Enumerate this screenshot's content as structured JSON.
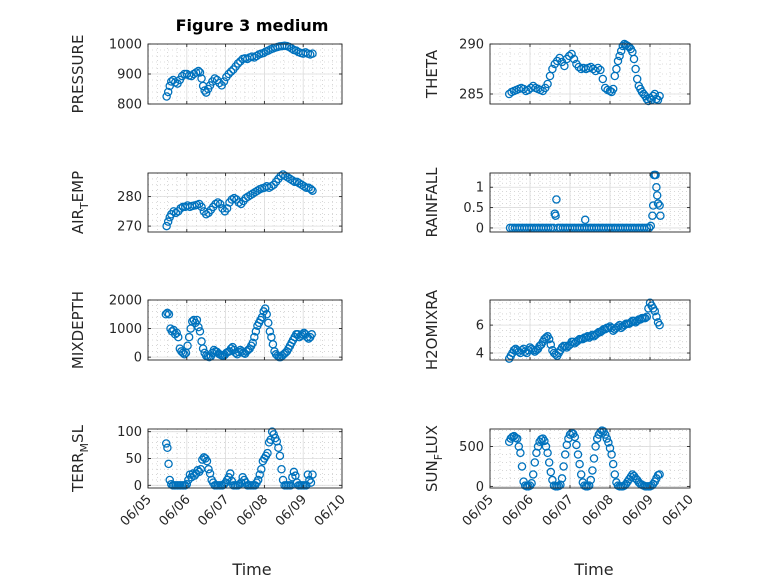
{
  "figure": {
    "title": "Figure 3 medium",
    "xlabel": "Time",
    "date_ticks": [
      "06/05",
      "06/06",
      "06/07",
      "06/08",
      "06/09",
      "06/10"
    ],
    "marker_color": "#0072BD"
  },
  "chart_data": [
    {
      "type": "scatter",
      "ylabel": "PRESSURE",
      "ylim": [
        800,
        1000
      ],
      "yticks": [
        800,
        900,
        1000
      ],
      "grid": true,
      "minor_grid": true,
      "x": [
        5.48,
        5.52,
        5.56,
        5.6,
        5.65,
        5.7,
        5.76,
        5.82,
        5.88,
        5.94,
        6.0,
        6.06,
        6.12,
        6.18,
        6.24,
        6.3,
        6.34,
        6.38,
        6.42,
        6.46,
        6.5,
        6.55,
        6.6,
        6.66,
        6.72,
        6.78,
        6.84,
        6.9,
        6.96,
        7.02,
        7.08,
        7.14,
        7.2,
        7.26,
        7.32,
        7.38,
        7.44,
        7.5,
        7.56,
        7.62,
        7.68,
        7.74,
        7.8,
        7.86,
        7.92,
        7.98,
        8.04,
        8.1,
        8.16,
        8.22,
        8.28,
        8.34,
        8.4,
        8.46,
        8.52,
        8.58,
        8.64,
        8.7,
        8.76,
        8.82,
        8.88,
        8.94,
        9.0,
        9.06,
        9.12,
        9.18,
        9.24
      ],
      "y": [
        825,
        840,
        860,
        875,
        880,
        872,
        868,
        880,
        893,
        900,
        900,
        895,
        893,
        900,
        905,
        910,
        905,
        885,
        860,
        845,
        838,
        850,
        862,
        875,
        885,
        880,
        870,
        862,
        875,
        890,
        900,
        908,
        915,
        925,
        935,
        942,
        950,
        952,
        950,
        955,
        958,
        955,
        960,
        965,
        968,
        970,
        975,
        978,
        982,
        985,
        988,
        990,
        992,
        993,
        994,
        993,
        990,
        985,
        980,
        978,
        973,
        970,
        968,
        972,
        968,
        965,
        968
      ]
    },
    {
      "type": "scatter",
      "ylabel": "THETA",
      "ylim": [
        284,
        290
      ],
      "yticks": [
        285,
        290
      ],
      "grid": true,
      "minor_grid": true,
      "x": [
        5.48,
        5.54,
        5.6,
        5.66,
        5.72,
        5.78,
        5.84,
        5.9,
        5.96,
        6.02,
        6.08,
        6.14,
        6.2,
        6.26,
        6.32,
        6.38,
        6.44,
        6.5,
        6.56,
        6.62,
        6.68,
        6.74,
        6.8,
        6.86,
        6.92,
        6.98,
        7.04,
        7.1,
        7.16,
        7.22,
        7.28,
        7.34,
        7.4,
        7.46,
        7.52,
        7.58,
        7.64,
        7.7,
        7.76,
        7.82,
        7.88,
        7.94,
        8.0,
        8.04,
        8.08,
        8.12,
        8.16,
        8.2,
        8.24,
        8.28,
        8.32,
        8.36,
        8.4,
        8.44,
        8.48,
        8.52,
        8.56,
        8.6,
        8.64,
        8.68,
        8.72,
        8.76,
        8.8,
        8.84,
        8.88,
        8.92,
        8.96,
        9.0,
        9.04,
        9.08,
        9.12,
        9.16,
        9.2,
        9.24
      ],
      "y": [
        285.0,
        285.2,
        285.3,
        285.4,
        285.5,
        285.6,
        285.5,
        285.3,
        285.4,
        285.6,
        285.8,
        285.6,
        285.5,
        285.4,
        285.3,
        285.6,
        286.0,
        286.8,
        287.5,
        288.0,
        288.3,
        288.6,
        288.2,
        287.8,
        288.5,
        288.8,
        289.0,
        288.5,
        288.0,
        287.7,
        287.5,
        287.6,
        287.5,
        287.6,
        287.7,
        287.5,
        287.3,
        287.6,
        287.4,
        286.5,
        285.6,
        285.4,
        285.3,
        285.2,
        285.5,
        286.8,
        287.5,
        288.3,
        288.8,
        289.3,
        289.8,
        290.0,
        289.9,
        289.8,
        289.7,
        289.5,
        289.2,
        288.5,
        287.5,
        286.5,
        285.8,
        285.5,
        285.2,
        285.0,
        284.8,
        284.5,
        284.3,
        284.6,
        284.4,
        284.8,
        285.0,
        284.5,
        284.4,
        284.8
      ]
    },
    {
      "type": "scatter",
      "ylabel": "AIR_TEMP",
      "ylim": [
        268,
        288
      ],
      "yticks": [
        270,
        280
      ],
      "grid": true,
      "minor_grid": true,
      "x": [
        5.48,
        5.52,
        5.56,
        5.6,
        5.66,
        5.72,
        5.78,
        5.84,
        5.9,
        5.96,
        6.02,
        6.08,
        6.14,
        6.2,
        6.26,
        6.32,
        6.38,
        6.44,
        6.5,
        6.56,
        6.62,
        6.68,
        6.74,
        6.8,
        6.86,
        6.92,
        6.98,
        7.04,
        7.1,
        7.16,
        7.22,
        7.28,
        7.34,
        7.4,
        7.46,
        7.52,
        7.58,
        7.64,
        7.7,
        7.76,
        7.82,
        7.88,
        7.94,
        8.0,
        8.06,
        8.12,
        8.18,
        8.24,
        8.3,
        8.36,
        8.42,
        8.48,
        8.54,
        8.6,
        8.66,
        8.72,
        8.78,
        8.84,
        8.9,
        8.96,
        9.02,
        9.08,
        9.14,
        9.2,
        9.24
      ],
      "y": [
        270,
        271.5,
        273,
        274,
        275,
        274.5,
        275,
        276,
        276.5,
        276.5,
        277,
        276.5,
        276.8,
        277,
        277.2,
        277.5,
        276.5,
        275,
        274,
        274.5,
        275.5,
        276.5,
        277.5,
        278,
        277.5,
        276,
        275,
        276,
        278,
        279,
        279.5,
        279,
        278,
        277.5,
        278.5,
        279.5,
        280,
        280.5,
        281,
        281.5,
        282,
        282.5,
        282.8,
        283,
        283.5,
        283,
        283.5,
        284,
        285,
        286,
        287,
        287.5,
        287,
        286.5,
        286,
        285.5,
        285,
        285,
        284.5,
        284,
        283.5,
        283,
        283,
        282.5,
        282
      ]
    },
    {
      "type": "scatter",
      "ylabel": "RAINFALL",
      "ylim": [
        -0.1,
        1.35
      ],
      "yticks": [
        0,
        0.5,
        1
      ],
      "grid": true,
      "minor_grid": true,
      "x": [
        5.5,
        5.56,
        5.62,
        5.68,
        5.74,
        5.8,
        5.86,
        5.92,
        5.98,
        6.04,
        6.1,
        6.16,
        6.22,
        6.28,
        6.34,
        6.4,
        6.46,
        6.52,
        6.58,
        6.62,
        6.64,
        6.66,
        6.7,
        6.76,
        6.82,
        6.88,
        6.94,
        7.0,
        7.06,
        7.12,
        7.18,
        7.24,
        7.3,
        7.36,
        7.38,
        7.42,
        7.48,
        7.54,
        7.6,
        7.66,
        7.72,
        7.78,
        7.84,
        7.9,
        7.96,
        8.02,
        8.08,
        8.14,
        8.2,
        8.26,
        8.32,
        8.38,
        8.44,
        8.5,
        8.56,
        8.62,
        8.68,
        8.74,
        8.8,
        8.86,
        8.92,
        8.98,
        9.02,
        9.06,
        9.08,
        9.1,
        9.12,
        9.14,
        9.16,
        9.18,
        9.2,
        9.24,
        9.26
      ],
      "y": [
        0,
        0,
        0,
        0,
        0,
        0,
        0,
        0,
        0,
        0,
        0,
        0,
        0,
        0,
        0,
        0,
        0,
        0,
        0,
        0.35,
        0.3,
        0.7,
        0,
        0,
        0,
        0,
        0,
        0,
        0,
        0,
        0,
        0,
        0,
        0,
        0.2,
        0,
        0,
        0,
        0,
        0,
        0,
        0,
        0,
        0,
        0,
        0,
        0,
        0,
        0,
        0,
        0,
        0,
        0,
        0,
        0,
        0,
        0,
        0,
        0,
        0,
        0,
        0,
        0.05,
        0.3,
        0.55,
        1.3,
        1.3,
        1.3,
        1.0,
        0.8,
        0.6,
        0.55,
        0.3
      ]
    },
    {
      "type": "scatter",
      "ylabel": "MIXDEPTH",
      "ylim": [
        -100,
        2000
      ],
      "yticks": [
        0,
        1000,
        2000
      ],
      "grid": true,
      "minor_grid": true,
      "x": [
        5.46,
        5.5,
        5.54,
        5.58,
        5.62,
        5.66,
        5.7,
        5.74,
        5.78,
        5.82,
        5.86,
        5.9,
        5.94,
        5.98,
        6.02,
        6.06,
        6.1,
        6.14,
        6.18,
        6.22,
        6.26,
        6.3,
        6.34,
        6.38,
        6.42,
        6.46,
        6.5,
        6.54,
        6.58,
        6.62,
        6.66,
        6.7,
        6.74,
        6.78,
        6.82,
        6.86,
        6.9,
        6.94,
        6.98,
        7.02,
        7.06,
        7.1,
        7.14,
        7.18,
        7.22,
        7.26,
        7.3,
        7.34,
        7.38,
        7.42,
        7.46,
        7.5,
        7.54,
        7.58,
        7.62,
        7.66,
        7.7,
        7.74,
        7.78,
        7.82,
        7.86,
        7.9,
        7.94,
        7.98,
        8.02,
        8.06,
        8.1,
        8.14,
        8.18,
        8.22,
        8.26,
        8.3,
        8.34,
        8.38,
        8.42,
        8.46,
        8.5,
        8.54,
        8.58,
        8.62,
        8.66,
        8.7,
        8.74,
        8.78,
        8.82,
        8.86,
        8.9,
        8.94,
        8.98,
        9.02,
        9.06,
        9.1,
        9.14,
        9.18,
        9.22
      ],
      "y": [
        1500,
        1550,
        1500,
        1000,
        900,
        950,
        800,
        850,
        700,
        300,
        200,
        150,
        100,
        150,
        400,
        700,
        1000,
        1250,
        1300,
        1200,
        1300,
        1050,
        900,
        550,
        300,
        150,
        50,
        20,
        0,
        30,
        150,
        250,
        200,
        180,
        120,
        90,
        60,
        40,
        80,
        150,
        180,
        200,
        300,
        350,
        250,
        150,
        100,
        180,
        250,
        200,
        150,
        120,
        200,
        250,
        300,
        400,
        500,
        700,
        900,
        1100,
        1200,
        1300,
        1400,
        1600,
        1700,
        1500,
        1200,
        900,
        700,
        450,
        200,
        100,
        50,
        0,
        0,
        50,
        100,
        150,
        200,
        300,
        400,
        500,
        600,
        700,
        800,
        800,
        700,
        750,
        800,
        850,
        800,
        700,
        650,
        700,
        800
      ]
    },
    {
      "type": "scatter",
      "ylabel": "H2OMIXRA",
      "ylim": [
        3.5,
        7.8
      ],
      "yticks": [
        4,
        6
      ],
      "grid": true,
      "minor_grid": true,
      "x": [
        5.48,
        5.52,
        5.56,
        5.6,
        5.64,
        5.68,
        5.72,
        5.76,
        5.8,
        5.84,
        5.88,
        5.92,
        5.96,
        6.0,
        6.04,
        6.08,
        6.12,
        6.16,
        6.2,
        6.24,
        6.28,
        6.32,
        6.36,
        6.4,
        6.44,
        6.48,
        6.52,
        6.56,
        6.6,
        6.64,
        6.68,
        6.72,
        6.76,
        6.8,
        6.84,
        6.88,
        6.92,
        6.96,
        7.0,
        7.04,
        7.08,
        7.12,
        7.16,
        7.2,
        7.24,
        7.28,
        7.32,
        7.36,
        7.4,
        7.44,
        7.48,
        7.52,
        7.56,
        7.6,
        7.64,
        7.68,
        7.72,
        7.76,
        7.8,
        7.84,
        7.88,
        7.92,
        7.96,
        8.0,
        8.04,
        8.08,
        8.12,
        8.16,
        8.2,
        8.24,
        8.28,
        8.32,
        8.36,
        8.4,
        8.44,
        8.48,
        8.52,
        8.56,
        8.6,
        8.64,
        8.68,
        8.72,
        8.76,
        8.8,
        8.84,
        8.88,
        8.92,
        8.96,
        9.0,
        9.04,
        9.08,
        9.12,
        9.16,
        9.2,
        9.24
      ],
      "y": [
        3.6,
        3.8,
        4.0,
        4.2,
        4.3,
        4.2,
        4.1,
        4.0,
        4.2,
        4.3,
        4.1,
        4.0,
        4.2,
        4.4,
        4.3,
        4.2,
        4.1,
        4.2,
        4.3,
        4.5,
        4.6,
        4.8,
        5.0,
        5.1,
        5.2,
        5.0,
        4.6,
        4.2,
        4.0,
        3.9,
        3.8,
        4.0,
        4.2,
        4.4,
        4.5,
        4.5,
        4.4,
        4.5,
        4.6,
        4.8,
        4.8,
        4.7,
        4.8,
        4.9,
        5.0,
        5.0,
        5.0,
        5.1,
        5.1,
        5.2,
        5.1,
        5.2,
        5.3,
        5.2,
        5.3,
        5.4,
        5.5,
        5.5,
        5.6,
        5.7,
        5.7,
        5.8,
        5.8,
        5.9,
        5.8,
        5.6,
        5.7,
        5.8,
        5.9,
        6.0,
        5.8,
        5.9,
        6.0,
        6.1,
        6.1,
        6.1,
        6.2,
        6.3,
        6.3,
        6.2,
        6.3,
        6.4,
        6.4,
        6.5,
        6.5,
        6.5,
        6.6,
        7.2,
        7.6,
        7.4,
        7.2,
        7.0,
        6.6,
        6.2,
        6.0
      ]
    },
    {
      "type": "scatter",
      "ylabel": "TERR_MSL",
      "ylim": [
        -5,
        105
      ],
      "yticks": [
        0,
        50,
        100
      ],
      "grid": true,
      "minor_grid": true,
      "x": [
        5.47,
        5.5,
        5.53,
        5.56,
        5.6,
        5.64,
        5.68,
        5.72,
        5.76,
        5.8,
        5.84,
        5.88,
        5.92,
        5.96,
        6.0,
        6.04,
        6.08,
        6.12,
        6.16,
        6.2,
        6.24,
        6.28,
        6.32,
        6.36,
        6.4,
        6.44,
        6.48,
        6.52,
        6.56,
        6.6,
        6.64,
        6.68,
        6.72,
        6.76,
        6.8,
        6.84,
        6.88,
        6.92,
        6.96,
        7.0,
        7.04,
        7.08,
        7.12,
        7.16,
        7.2,
        7.24,
        7.28,
        7.32,
        7.36,
        7.4,
        7.44,
        7.48,
        7.52,
        7.56,
        7.6,
        7.64,
        7.68,
        7.72,
        7.76,
        7.8,
        7.84,
        7.88,
        7.92,
        7.96,
        8.0,
        8.04,
        8.08,
        8.12,
        8.16,
        8.2,
        8.24,
        8.28,
        8.32,
        8.36,
        8.4,
        8.44,
        8.48,
        8.52,
        8.56,
        8.6,
        8.64,
        8.68,
        8.72,
        8.76,
        8.8,
        8.84,
        8.88,
        8.92,
        8.96,
        9.0,
        9.04,
        9.08,
        9.12,
        9.16,
        9.2,
        9.24
      ],
      "y": [
        78,
        70,
        40,
        10,
        2,
        0,
        0,
        0,
        0,
        0,
        0,
        0,
        0,
        0,
        2,
        10,
        20,
        15,
        22,
        18,
        22,
        28,
        25,
        30,
        48,
        52,
        50,
        45,
        30,
        22,
        10,
        5,
        0,
        0,
        0,
        0,
        0,
        0,
        2,
        5,
        10,
        15,
        22,
        8,
        0,
        0,
        0,
        0,
        2,
        5,
        15,
        10,
        5,
        0,
        0,
        0,
        0,
        0,
        0,
        5,
        10,
        20,
        30,
        45,
        50,
        55,
        60,
        80,
        85,
        100,
        95,
        88,
        82,
        70,
        55,
        30,
        10,
        0,
        0,
        0,
        0,
        0,
        15,
        25,
        18,
        5,
        0,
        0,
        0,
        0,
        0,
        0,
        20,
        10,
        5,
        20
      ]
    },
    {
      "type": "scatter",
      "ylabel": "SUN_FLUX",
      "ylim": [
        -20,
        720
      ],
      "yticks": [
        0,
        500
      ],
      "grid": true,
      "minor_grid": true,
      "x": [
        5.48,
        5.52,
        5.56,
        5.6,
        5.64,
        5.68,
        5.72,
        5.76,
        5.8,
        5.84,
        5.88,
        5.92,
        5.96,
        6.0,
        6.04,
        6.08,
        6.12,
        6.16,
        6.2,
        6.24,
        6.28,
        6.32,
        6.36,
        6.4,
        6.44,
        6.48,
        6.52,
        6.56,
        6.6,
        6.64,
        6.68,
        6.72,
        6.76,
        6.8,
        6.84,
        6.88,
        6.92,
        6.96,
        7.0,
        7.04,
        7.08,
        7.12,
        7.16,
        7.2,
        7.24,
        7.28,
        7.32,
        7.36,
        7.4,
        7.44,
        7.48,
        7.52,
        7.56,
        7.6,
        7.64,
        7.68,
        7.72,
        7.76,
        7.8,
        7.84,
        7.88,
        7.92,
        7.96,
        8.0,
        8.04,
        8.08,
        8.12,
        8.16,
        8.2,
        8.24,
        8.28,
        8.32,
        8.36,
        8.4,
        8.44,
        8.48,
        8.52,
        8.56,
        8.6,
        8.64,
        8.68,
        8.72,
        8.76,
        8.8,
        8.84,
        8.88,
        8.92,
        8.96,
        9.0,
        9.04,
        9.08,
        9.12,
        9.16,
        9.2,
        9.24
      ],
      "y": [
        560,
        600,
        620,
        630,
        610,
        600,
        500,
        420,
        250,
        60,
        10,
        0,
        0,
        10,
        40,
        150,
        300,
        420,
        500,
        560,
        590,
        600,
        570,
        500,
        420,
        300,
        180,
        80,
        10,
        0,
        0,
        5,
        20,
        100,
        250,
        400,
        520,
        600,
        650,
        670,
        660,
        620,
        520,
        400,
        280,
        150,
        50,
        10,
        0,
        0,
        10,
        80,
        200,
        350,
        500,
        600,
        650,
        680,
        700,
        690,
        650,
        600,
        550,
        480,
        400,
        280,
        150,
        50,
        10,
        0,
        0,
        0,
        10,
        30,
        60,
        90,
        120,
        150,
        130,
        100,
        80,
        50,
        30,
        20,
        10,
        0,
        0,
        0,
        0,
        10,
        30,
        60,
        100,
        140,
        150
      ]
    }
  ]
}
